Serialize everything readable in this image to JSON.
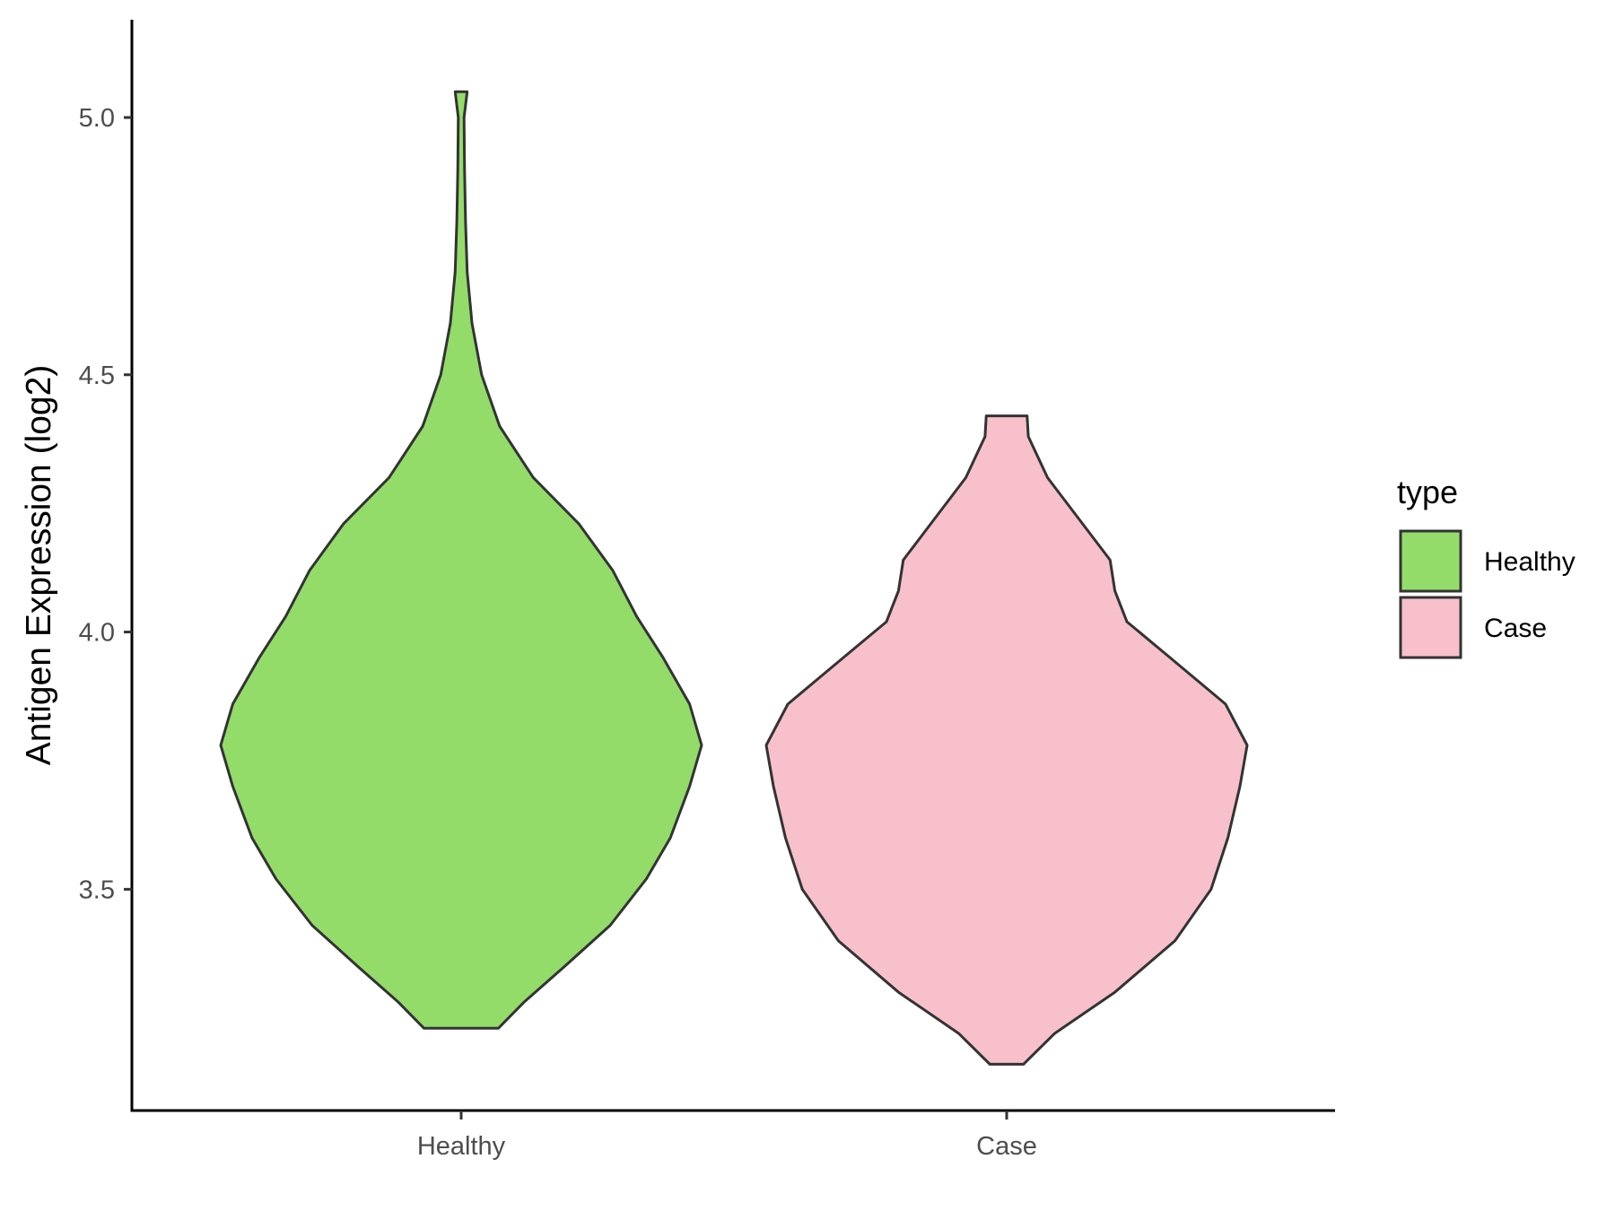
{
  "chart_data": {
    "type": "violin",
    "ylabel": "Antigen Expression (log2)",
    "xlabel": "",
    "ylim": [
      3.07,
      5.19
    ],
    "yticks": [
      3.5,
      4.0,
      4.5,
      5.0
    ],
    "categories": [
      "Healthy",
      "Case"
    ],
    "legend": {
      "title": "type",
      "position": "right",
      "entries": [
        "Healthy",
        "Case"
      ]
    },
    "grid": false,
    "series": [
      {
        "name": "Healthy",
        "color": "#93dc6a",
        "min": 3.23,
        "max": 5.05,
        "density": [
          [
            3.23,
            0.155
          ],
          [
            3.28,
            0.26
          ],
          [
            3.35,
            0.43
          ],
          [
            3.43,
            0.62
          ],
          [
            3.52,
            0.77
          ],
          [
            3.6,
            0.87
          ],
          [
            3.7,
            0.95
          ],
          [
            3.78,
            1.0
          ],
          [
            3.86,
            0.95
          ],
          [
            3.95,
            0.84
          ],
          [
            4.03,
            0.73
          ],
          [
            4.12,
            0.63
          ],
          [
            4.21,
            0.49
          ],
          [
            4.3,
            0.3
          ],
          [
            4.4,
            0.16
          ],
          [
            4.5,
            0.085
          ],
          [
            4.6,
            0.045
          ],
          [
            4.7,
            0.025
          ],
          [
            4.8,
            0.018
          ],
          [
            4.9,
            0.014
          ],
          [
            5.0,
            0.012
          ],
          [
            5.05,
            0.025
          ]
        ]
      },
      {
        "name": "Case",
        "color": "#f8c0cb",
        "min": 3.16,
        "max": 4.42,
        "density": [
          [
            3.16,
            0.07
          ],
          [
            3.22,
            0.2
          ],
          [
            3.3,
            0.45
          ],
          [
            3.4,
            0.7
          ],
          [
            3.5,
            0.85
          ],
          [
            3.6,
            0.92
          ],
          [
            3.7,
            0.97
          ],
          [
            3.78,
            1.0
          ],
          [
            3.86,
            0.91
          ],
          [
            3.95,
            0.68
          ],
          [
            4.02,
            0.5
          ],
          [
            4.08,
            0.45
          ],
          [
            4.14,
            0.43
          ],
          [
            4.22,
            0.3
          ],
          [
            4.3,
            0.17
          ],
          [
            4.38,
            0.09
          ],
          [
            4.42,
            0.085
          ]
        ]
      }
    ]
  }
}
